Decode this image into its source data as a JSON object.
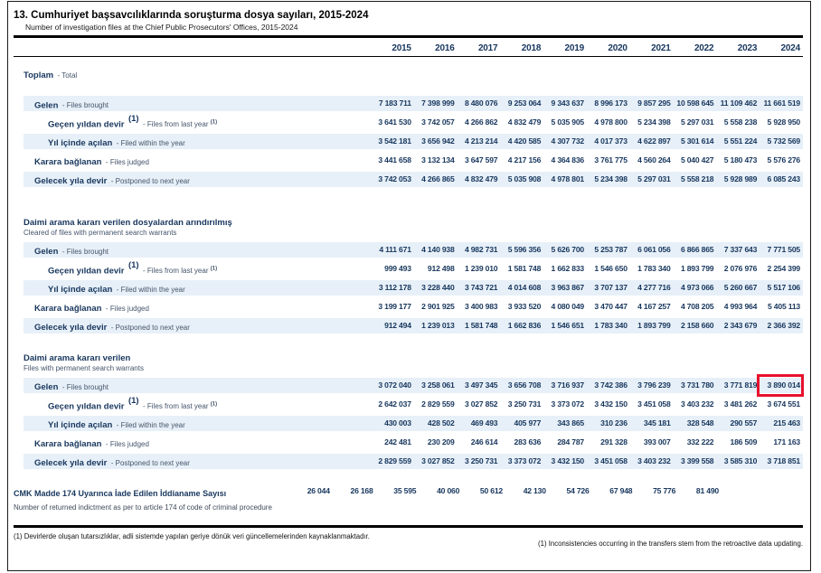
{
  "ui": {
    "sep": "-",
    "highlight_color": "#e8112d"
  },
  "header": {
    "title": "13. Cumhuriyet başsavcılıklarında soruşturma dosya sayıları, 2015-2024",
    "subtitle": "Number of investigation files at the Chief Public Prosecutors' Offices, 2015-2024"
  },
  "years": [
    "2015",
    "2016",
    "2017",
    "2018",
    "2019",
    "2020",
    "2021",
    "2022",
    "2023",
    "2024"
  ],
  "blocks": [
    {
      "header_tr": "Toplam",
      "header_en": "Total",
      "rows": [
        {
          "label_tr": "Gelen",
          "sup_tr": "",
          "label_en": "Files brought",
          "sup_en": "",
          "values": [
            "7 183 711",
            "7 398 999",
            "8 480 076",
            "9 253 064",
            "9 343 637",
            "8 996 173",
            "9 857 295",
            "10 598 645",
            "11 109 462",
            "11 661 519"
          ]
        },
        {
          "label_tr": "Geçen yıldan devir",
          "sup_tr": "(1)",
          "label_en": "Files from last year",
          "sup_en": "(1)",
          "values": [
            "3 641 530",
            "3 742 057",
            "4 266 862",
            "4 832 479",
            "5 035 905",
            "4 978 800",
            "5 234 398",
            "5 297 031",
            "5 558 238",
            "5 928 950"
          ]
        },
        {
          "label_tr": "Yıl içinde açılan",
          "sup_tr": "",
          "label_en": "Filed within the year",
          "sup_en": "",
          "values": [
            "3 542 181",
            "3 656 942",
            "4 213 214",
            "4 420 585",
            "4 307 732",
            "4 017 373",
            "4 622 897",
            "5 301 614",
            "5 551 224",
            "5 732 569"
          ]
        },
        {
          "label_tr": "Karara bağlanan",
          "sup_tr": "",
          "label_en": "Files judged",
          "sup_en": "",
          "values": [
            "3 441 658",
            "3 132 134",
            "3 647 597",
            "4 217 156",
            "4 364 836",
            "3 761 775",
            "4 560 264",
            "5 040 427",
            "5 180 473",
            "5 576 276"
          ]
        },
        {
          "label_tr": "Gelecek yıla devir",
          "sup_tr": "",
          "label_en": "Postponed to next year",
          "sup_en": "",
          "values": [
            "3 742 053",
            "4 266 865",
            "4 832 479",
            "5 035 908",
            "4 978 801",
            "5 234 398",
            "5 297 031",
            "5 558 218",
            "5 928 989",
            "6 085 243"
          ]
        }
      ]
    },
    {
      "header_tr": "Daimi arama kararı verilen dosyalardan arındırılmış",
      "header_en": "Cleared of files with permanent search warrants",
      "rows": [
        {
          "label_tr": "Gelen",
          "sup_tr": "",
          "label_en": "Files brought",
          "sup_en": "",
          "values": [
            "4 111 671",
            "4 140 938",
            "4 982 731",
            "5 596 356",
            "5 626 700",
            "5 253 787",
            "6 061 056",
            "6 866 865",
            "7 337 643",
            "7 771 505"
          ]
        },
        {
          "label_tr": "Geçen yıldan devir",
          "sup_tr": "(1)",
          "label_en": "Files from last year",
          "sup_en": "(1)",
          "values": [
            "999 493",
            "912 498",
            "1 239 010",
            "1 581 748",
            "1 662 833",
            "1 546 650",
            "1 783 340",
            "1 893 799",
            "2 076 976",
            "2 254 399"
          ]
        },
        {
          "label_tr": "Yıl içinde açılan",
          "sup_tr": "",
          "label_en": "Filed within the year",
          "sup_en": "",
          "values": [
            "3 112 178",
            "3 228 440",
            "3 743 721",
            "4 014 608",
            "3 963 867",
            "3 707 137",
            "4 277 716",
            "4 973 066",
            "5 260 667",
            "5 517 106"
          ]
        },
        {
          "label_tr": "Karara bağlanan",
          "sup_tr": "",
          "label_en": "Files judged",
          "sup_en": "",
          "values": [
            "3 199 177",
            "2 901 925",
            "3 400 983",
            "3 933 520",
            "4 080 049",
            "3 470 447",
            "4 167 257",
            "4 708 205",
            "4 993 964",
            "5 405 113"
          ]
        },
        {
          "label_tr": "Gelecek yıla devir",
          "sup_tr": "",
          "label_en": "Postponed to next year",
          "sup_en": "",
          "values": [
            "912 494",
            "1 239 013",
            "1 581 748",
            "1 662 836",
            "1 546 651",
            "1 783 340",
            "1 893 799",
            "2 158 660",
            "2 343 679",
            "2 366 392"
          ]
        }
      ]
    },
    {
      "header_tr": "Daimi arama kararı verilen",
      "header_en": "Files with permanent search warrants",
      "rows": [
        {
          "label_tr": "Gelen",
          "sup_tr": "",
          "label_en": "Files brought",
          "sup_en": "",
          "values": [
            "3 072 040",
            "3 258 061",
            "3 497 345",
            "3 656 708",
            "3 716 937",
            "3 742 386",
            "3 796 239",
            "3 731 780",
            "3 771 819",
            "3 890 014"
          ]
        },
        {
          "label_tr": "Geçen yıldan devir",
          "sup_tr": "(1)",
          "label_en": "Files from last year",
          "sup_en": "(1)",
          "values": [
            "2 642 037",
            "2 829 559",
            "3 027 852",
            "3 250 731",
            "3 373 072",
            "3 432 150",
            "3 451 058",
            "3 403 232",
            "3 481 262",
            "3 674 551"
          ]
        },
        {
          "label_tr": "Yıl içinde açılan",
          "sup_tr": "",
          "label_en": "Filed within the year",
          "sup_en": "",
          "values": [
            "430 003",
            "428 502",
            "469 493",
            "405 977",
            "343 865",
            "310 236",
            "345 181",
            "328 548",
            "290 557",
            "215 463"
          ]
        },
        {
          "label_tr": "Karara bağlanan",
          "sup_tr": "",
          "label_en": "Files judged",
          "sup_en": "",
          "values": [
            "242 481",
            "230 209",
            "246 614",
            "283 636",
            "284 787",
            "291 328",
            "393 007",
            "332 222",
            "186 509",
            "171 163"
          ]
        },
        {
          "label_tr": "Gelecek yıla devir",
          "sup_tr": "",
          "label_en": "Postponed to next year",
          "sup_en": "",
          "values": [
            "2 829 559",
            "3 027 852",
            "3 250 731",
            "3 373 072",
            "3 432 150",
            "3 451 058",
            "3 403 232",
            "3 399 558",
            "3 585 310",
            "3 718 851"
          ]
        }
      ]
    }
  ],
  "cmk": {
    "label_tr": "CMK Madde 174 Uyarınca İade Edilen İddianame Sayısı",
    "label_en": "Number of returned indictment as per to article 174 of code of criminal procedure",
    "values": [
      "26 044",
      "26 168",
      "35 595",
      "40 060",
      "50 612",
      "42 130",
      "54 726",
      "67 948",
      "75 776",
      "81 490"
    ]
  },
  "footnotes": {
    "tr": "(1) Devirlerde oluşan tutarsızlıklar, adli sistemde yapılan geriye dönük veri güncellemelerinden kaynaklanmaktadır.",
    "en": "(1) Inconsistencies occurring in the transfers stem from the retroactive data updating."
  },
  "highlights": [
    {
      "cells": "blocks.2.rows.0.values",
      "index": 9
    }
  ]
}
